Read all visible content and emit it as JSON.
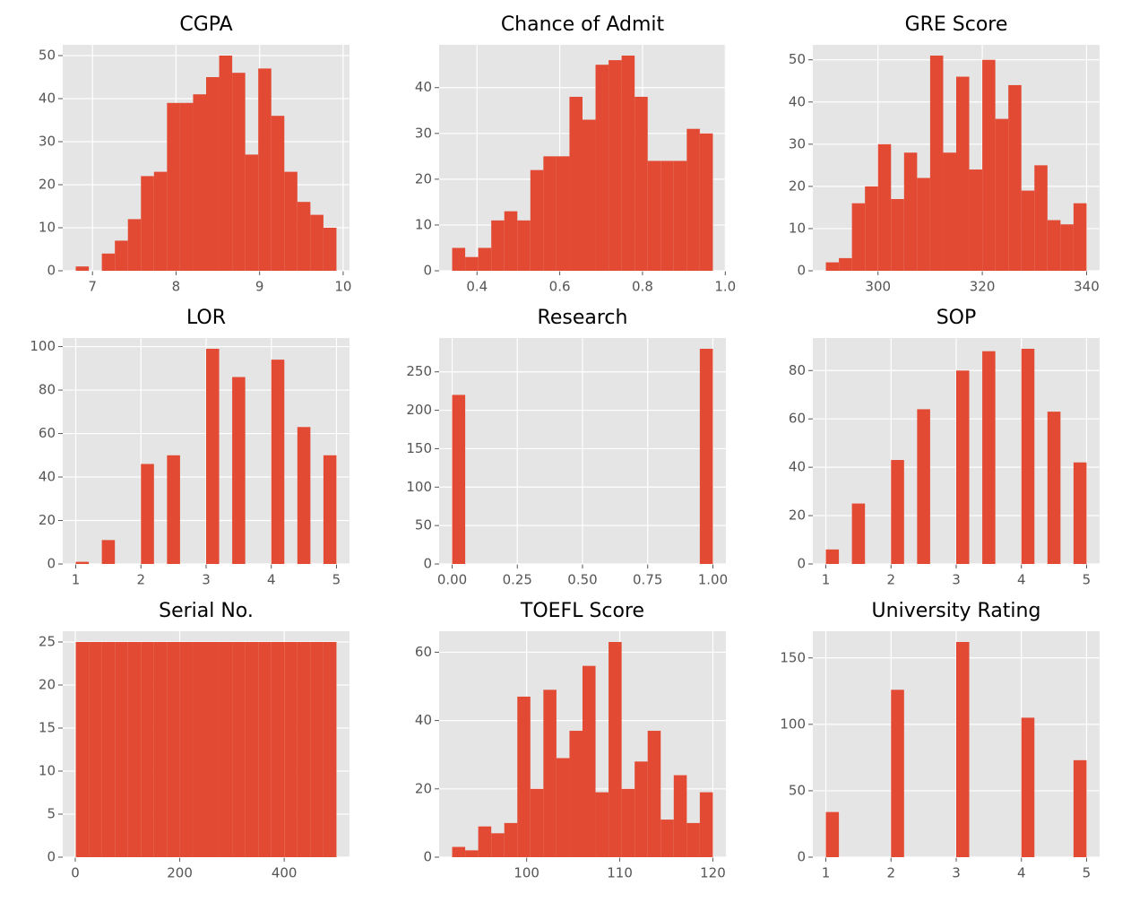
{
  "chart_data": [
    {
      "type": "histogram",
      "title": "CGPA",
      "color": "#e24a33",
      "grid": true,
      "bins": [
        6.8,
        6.956,
        7.112,
        7.268,
        7.424,
        7.58,
        7.736,
        7.892,
        8.048,
        8.204,
        8.36,
        8.516,
        8.672,
        8.828,
        8.984,
        9.14,
        9.296,
        9.452,
        9.608,
        9.764,
        9.92
      ],
      "values": [
        1,
        0,
        4,
        7,
        12,
        22,
        23,
        39,
        39,
        41,
        45,
        50,
        46,
        27,
        47,
        36,
        23,
        16,
        13,
        10
      ],
      "xlim": [
        6.644,
        10.076
      ],
      "xticks": [
        7,
        8,
        9,
        10
      ],
      "ylim": [
        0,
        52.5
      ],
      "yticks": [
        0,
        10,
        20,
        30,
        40,
        50
      ]
    },
    {
      "type": "histogram",
      "title": "Chance of Admit",
      "color": "#e24a33",
      "grid": true,
      "bins": [
        0.34,
        0.3715,
        0.403,
        0.4345,
        0.466,
        0.4975,
        0.529,
        0.5605,
        0.592,
        0.6235,
        0.655,
        0.6865,
        0.718,
        0.7495,
        0.781,
        0.8125,
        0.844,
        0.8755,
        0.907,
        0.9385,
        0.97
      ],
      "values": [
        5,
        3,
        5,
        11,
        13,
        11,
        22,
        25,
        25,
        38,
        33,
        45,
        46,
        47,
        38,
        24,
        24,
        24,
        31,
        30
      ],
      "xlim": [
        0.3085,
        1.0015
      ],
      "xticks": [
        0.4,
        0.6,
        0.8,
        {
          "value": 1,
          "label": "1.0"
        }
      ],
      "ylim": [
        0,
        49.35
      ],
      "yticks": [
        0,
        10,
        20,
        30,
        40
      ]
    },
    {
      "type": "histogram",
      "title": "GRE Score",
      "color": "#e24a33",
      "grid": true,
      "bins": [
        290,
        292.5,
        295,
        297.5,
        300,
        302.5,
        305,
        307.5,
        310,
        312.5,
        315,
        317.5,
        320,
        322.5,
        325,
        327.5,
        330,
        332.5,
        335,
        337.5,
        340
      ],
      "values": [
        2,
        3,
        16,
        20,
        30,
        17,
        28,
        22,
        51,
        28,
        46,
        24,
        50,
        36,
        44,
        19,
        25,
        12,
        11,
        16
      ],
      "xlim": [
        287.5,
        342.5
      ],
      "xticks": [
        300,
        320,
        340
      ],
      "ylim": [
        0,
        53.55
      ],
      "yticks": [
        0,
        10,
        20,
        30,
        40,
        50
      ]
    },
    {
      "type": "histogram",
      "title": "LOR",
      "color": "#e24a33",
      "grid": true,
      "bins": [
        1,
        1.2,
        1.4,
        1.6,
        1.8,
        2,
        2.2,
        2.4,
        2.6,
        2.8,
        3,
        3.2,
        3.4,
        3.6,
        3.8,
        4,
        4.2,
        4.4,
        4.6,
        4.8,
        5
      ],
      "values": [
        1,
        0,
        11,
        0,
        0,
        46,
        0,
        50,
        0,
        0,
        99,
        0,
        86,
        0,
        0,
        94,
        0,
        63,
        0,
        50
      ],
      "xlim": [
        0.8,
        5.2
      ],
      "xticks": [
        1,
        2,
        3,
        4,
        5
      ],
      "ylim": [
        0,
        103.95
      ],
      "yticks": [
        0,
        20,
        40,
        60,
        80,
        100
      ]
    },
    {
      "type": "histogram",
      "title": "Research",
      "color": "#e24a33",
      "grid": true,
      "bins": [
        0,
        0.05,
        0.1,
        0.15,
        0.2,
        0.25,
        0.3,
        0.35,
        0.4,
        0.45,
        0.5,
        0.55,
        0.6,
        0.65,
        0.7,
        0.75,
        0.8,
        0.85,
        0.9,
        0.95,
        1
      ],
      "values": [
        220,
        0,
        0,
        0,
        0,
        0,
        0,
        0,
        0,
        0,
        0,
        0,
        0,
        0,
        0,
        0,
        0,
        0,
        0,
        280
      ],
      "xlim": [
        -0.05,
        1.05
      ],
      "xticks": [
        {
          "value": 0,
          "label": "0.00"
        },
        0.25,
        {
          "value": 0.5,
          "label": "0.50"
        },
        0.75,
        {
          "value": 1,
          "label": "1.00"
        }
      ],
      "ylim": [
        0,
        294
      ],
      "yticks": [
        0,
        50,
        100,
        150,
        200,
        250
      ]
    },
    {
      "type": "histogram",
      "title": "SOP",
      "color": "#e24a33",
      "grid": true,
      "bins": [
        1,
        1.2,
        1.4,
        1.6,
        1.8,
        2,
        2.2,
        2.4,
        2.6,
        2.8,
        3,
        3.2,
        3.4,
        3.6,
        3.8,
        4,
        4.2,
        4.4,
        4.6,
        4.8,
        5
      ],
      "values": [
        6,
        0,
        25,
        0,
        0,
        43,
        0,
        64,
        0,
        0,
        80,
        0,
        88,
        0,
        0,
        89,
        0,
        63,
        0,
        42
      ],
      "xlim": [
        0.8,
        5.2
      ],
      "xticks": [
        1,
        2,
        3,
        4,
        5
      ],
      "ylim": [
        0,
        93.45
      ],
      "yticks": [
        0,
        20,
        40,
        60,
        80
      ]
    },
    {
      "type": "histogram",
      "title": "Serial No.",
      "color": "#e24a33",
      "grid": true,
      "bins": [
        1,
        25.95,
        50.9,
        75.85,
        100.8,
        125.75,
        150.7,
        175.65,
        200.6,
        225.55,
        250.5,
        275.45,
        300.4,
        325.35,
        350.3,
        375.25,
        400.2,
        425.15,
        450.1,
        475.05,
        500
      ],
      "values": [
        25,
        25,
        25,
        25,
        25,
        25,
        25,
        25,
        25,
        25,
        25,
        25,
        25,
        25,
        25,
        25,
        25,
        25,
        25,
        25
      ],
      "xlim": [
        -23.95,
        524.95
      ],
      "xticks": [
        0,
        200,
        400
      ],
      "ylim": [
        0,
        26.25
      ],
      "yticks": [
        0,
        5,
        10,
        15,
        20,
        25
      ]
    },
    {
      "type": "histogram",
      "title": "TOEFL Score",
      "color": "#e24a33",
      "grid": true,
      "bins": [
        92,
        93.4,
        94.8,
        96.2,
        97.6,
        99,
        100.4,
        101.8,
        103.2,
        104.6,
        106,
        107.4,
        108.8,
        110.2,
        111.6,
        113,
        114.4,
        115.8,
        117.2,
        118.6,
        120
      ],
      "values": [
        3,
        2,
        9,
        7,
        10,
        47,
        20,
        49,
        29,
        37,
        56,
        19,
        63,
        20,
        28,
        37,
        11,
        24,
        10,
        19
      ],
      "xlim": [
        90.6,
        121.4
      ],
      "xticks": [
        100,
        110,
        120
      ],
      "ylim": [
        0,
        66.15
      ],
      "yticks": [
        0,
        20,
        40,
        60
      ]
    },
    {
      "type": "histogram",
      "title": "University Rating",
      "color": "#e24a33",
      "grid": true,
      "bins": [
        1,
        1.2,
        1.4,
        1.6,
        1.8,
        2,
        2.2,
        2.4,
        2.6,
        2.8,
        3,
        3.2,
        3.4,
        3.6,
        3.8,
        4,
        4.2,
        4.4,
        4.6,
        4.8,
        5
      ],
      "values": [
        34,
        0,
        0,
        0,
        0,
        126,
        0,
        0,
        0,
        0,
        162,
        0,
        0,
        0,
        0,
        105,
        0,
        0,
        0,
        73
      ],
      "xlim": [
        0.8,
        5.2
      ],
      "xticks": [
        1,
        2,
        3,
        4,
        5
      ],
      "ylim": [
        0,
        170.1
      ],
      "yticks": [
        0,
        50,
        100,
        150
      ]
    }
  ]
}
